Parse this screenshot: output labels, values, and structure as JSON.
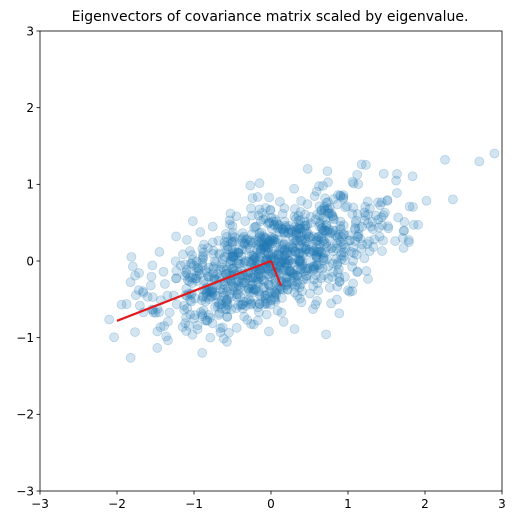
{
  "chart_data": {
    "type": "scatter",
    "title": "Eigenvectors of covariance matrix scaled by eigenvalue.",
    "xlabel": "",
    "ylabel": "",
    "xlim": [
      -3,
      3
    ],
    "ylim": [
      -3,
      3
    ],
    "x_ticks": [
      -3,
      -2,
      -1,
      0,
      1,
      2,
      3
    ],
    "y_ticks": [
      -3,
      -2,
      -1,
      0,
      1,
      2,
      3
    ],
    "x_tick_labels": [
      "−3",
      "−2",
      "−1",
      "0",
      "1",
      "2",
      "3"
    ],
    "y_tick_labels": [
      "−3",
      "−2",
      "−1",
      "0",
      "1",
      "2",
      "3"
    ],
    "grid": false,
    "point_color": "#1f77b4",
    "point_alpha": 0.2,
    "point_count": 1000,
    "distribution": {
      "mean": [
        0,
        0
      ],
      "covariance": [
        [
          0.6,
          0.2
        ],
        [
          0.2,
          0.2
        ]
      ]
    },
    "eigenvectors": {
      "color": "#e31a1c",
      "segments": [
        {
          "from": [
            0,
            0
          ],
          "to": [
            -2.0,
            -0.78
          ]
        },
        {
          "from": [
            0,
            0
          ],
          "to": [
            0.13,
            -0.32
          ]
        }
      ]
    }
  }
}
